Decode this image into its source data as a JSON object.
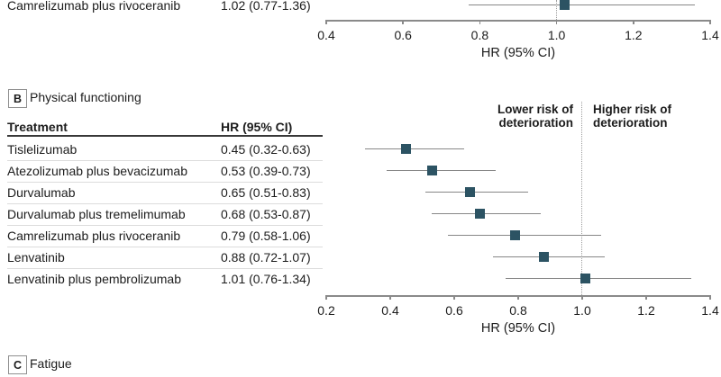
{
  "colors": {
    "marker": "#2c5363",
    "ci_line": "#878787",
    "axis": "#8a8a8a",
    "refline": "#9e9e9e",
    "separator": "#dcdcdc",
    "header_rule": "#383838",
    "text": "#1c1c1c"
  },
  "chart_data": [
    {
      "type": "scatter",
      "subtype": "forest-plot",
      "panel": "top-partial",
      "rows": [
        {
          "label": "Camrelizumab plus rivoceranib",
          "hr_text": "1.02 (0.77-1.36)",
          "hr": 1.02,
          "lo": 0.77,
          "hi": 1.36
        }
      ],
      "xlabel": "HR (95% CI)",
      "xlim": [
        0.4,
        1.4
      ],
      "xticks": [
        "0.4",
        "0.6",
        "0.8",
        "1.0",
        "1.2",
        "1.4"
      ],
      "refline": 1.0,
      "grid": false
    },
    {
      "type": "scatter",
      "subtype": "forest-plot",
      "panel_letter": "B",
      "title": "Physical functioning",
      "columns": {
        "treatment": "Treatment",
        "hr": "HR (95% CI)"
      },
      "annotations": {
        "left": "Lower risk of deterioration",
        "right": "Higher risk of deterioration"
      },
      "rows": [
        {
          "label": "Tislelizumab",
          "hr_text": "0.45 (0.32-0.63)",
          "hr": 0.45,
          "lo": 0.32,
          "hi": 0.63
        },
        {
          "label": "Atezolizumab plus bevacizumab",
          "hr_text": "0.53 (0.39-0.73)",
          "hr": 0.53,
          "lo": 0.39,
          "hi": 0.73
        },
        {
          "label": "Durvalumab",
          "hr_text": "0.65 (0.51-0.83)",
          "hr": 0.65,
          "lo": 0.51,
          "hi": 0.83
        },
        {
          "label": "Durvalumab plus tremelimumab",
          "hr_text": "0.68 (0.53-0.87)",
          "hr": 0.68,
          "lo": 0.53,
          "hi": 0.87
        },
        {
          "label": "Camrelizumab plus rivoceranib",
          "hr_text": "0.79 (0.58-1.06)",
          "hr": 0.79,
          "lo": 0.58,
          "hi": 1.06
        },
        {
          "label": "Lenvatinib",
          "hr_text": "0.88 (0.72-1.07)",
          "hr": 0.88,
          "lo": 0.72,
          "hi": 1.07
        },
        {
          "label": "Lenvatinib plus pembrolizumab",
          "hr_text": "1.01 (0.76-1.34)",
          "hr": 1.01,
          "lo": 0.76,
          "hi": 1.34
        }
      ],
      "xlabel": "HR (95% CI)",
      "xlim": [
        0.2,
        1.4
      ],
      "xticks": [
        "0.2",
        "0.4",
        "0.6",
        "0.8",
        "1.0",
        "1.2",
        "1.4"
      ],
      "refline": 1.0,
      "grid": false
    },
    {
      "type": "scatter",
      "subtype": "forest-plot",
      "panel_letter": "C",
      "title": "Fatigue",
      "rows": []
    }
  ]
}
